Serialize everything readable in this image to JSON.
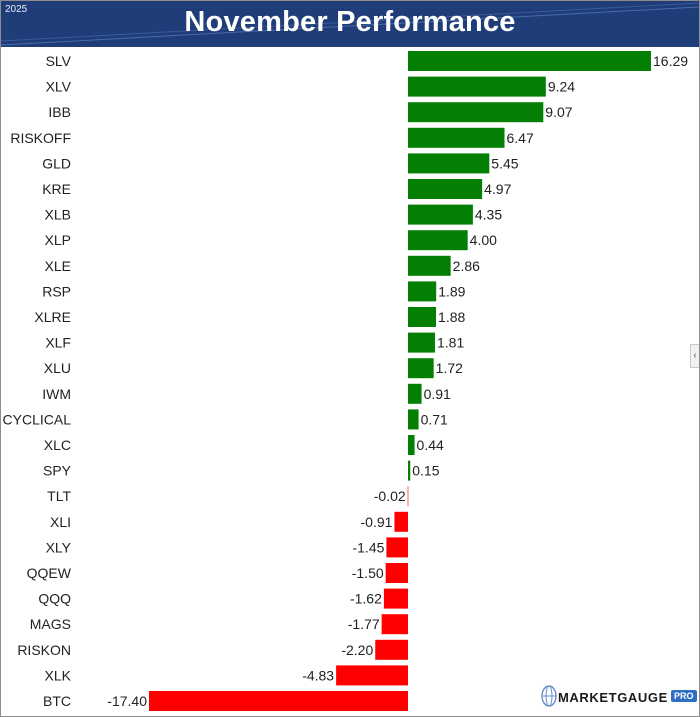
{
  "header": {
    "year": "2025",
    "title": "November Performance"
  },
  "colors": {
    "positive": "#038003",
    "negative": "#ff0000",
    "header_bg": "#1f3d78"
  },
  "logo": {
    "text": "MARKETGAUGE",
    "badge": "PRO"
  },
  "chart_data": {
    "type": "bar",
    "orientation": "horizontal",
    "title": "November Performance",
    "xlim": [
      -17.4,
      16.29
    ],
    "categories": [
      "SLV",
      "XLV",
      "IBB",
      "RISKOFF",
      "GLD",
      "KRE",
      "XLB",
      "XLP",
      "XLE",
      "RSP",
      "XLRE",
      "XLF",
      "XLU",
      "IWM",
      "CYCLICAL",
      "XLC",
      "SPY",
      "TLT",
      "XLI",
      "XLY",
      "QQEW",
      "QQQ",
      "MAGS",
      "RISKON",
      "XLK",
      "BTC"
    ],
    "values": [
      16.29,
      9.24,
      9.07,
      6.47,
      5.45,
      4.97,
      4.35,
      4.0,
      2.86,
      1.89,
      1.88,
      1.81,
      1.72,
      0.91,
      0.71,
      0.44,
      0.15,
      -0.02,
      -0.91,
      -1.45,
      -1.5,
      -1.62,
      -1.77,
      -2.2,
      -4.83,
      -17.4
    ],
    "labels": [
      "16.29",
      "9.24",
      "9.07",
      "6.47",
      "5.45",
      "4.97",
      "4.35",
      "4.00",
      "2.86",
      "1.89",
      "1.88",
      "1.81",
      "1.72",
      "0.91",
      "0.71",
      "0.44",
      "0.15",
      "-0.02",
      "-0.91",
      "-1.45",
      "-1.50",
      "-1.62",
      "-1.77",
      "-2.20",
      "-4.83",
      "-17.40"
    ]
  }
}
